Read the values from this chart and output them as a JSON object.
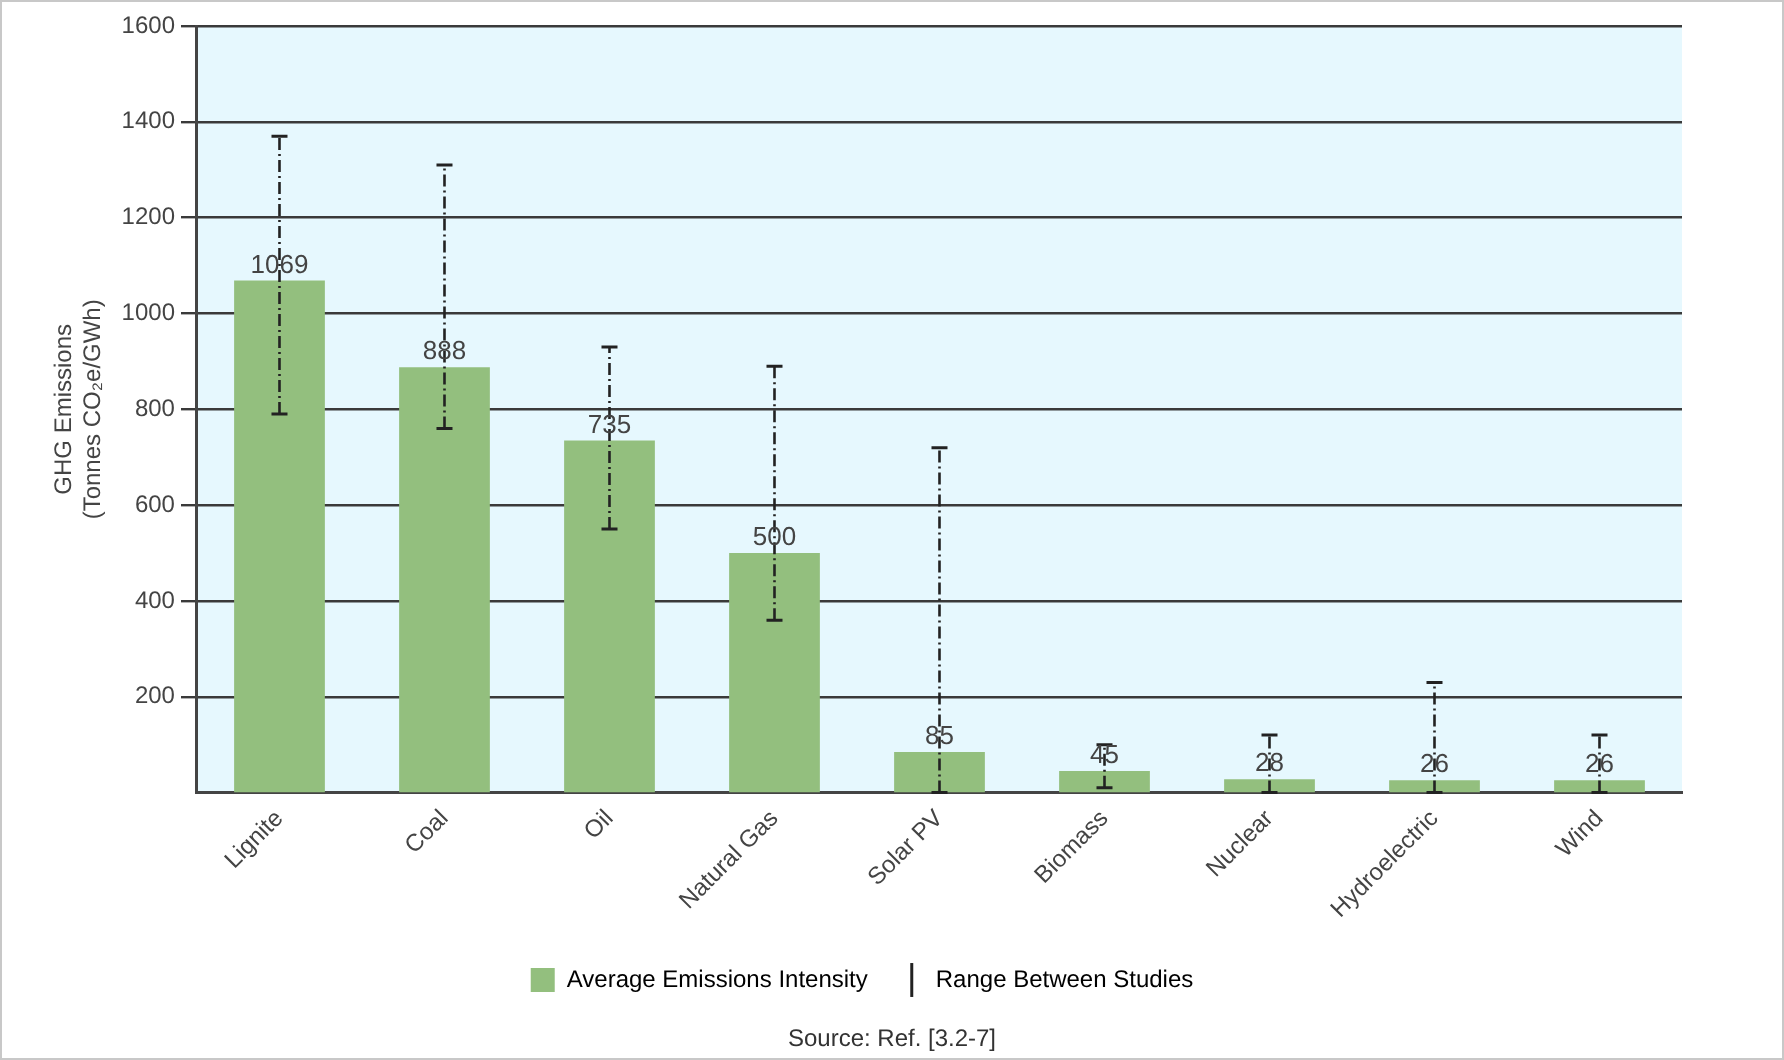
{
  "chart_data": {
    "type": "bar",
    "ylabel": "GHG Emissions\n(Tonnes CO₂e/GWh)",
    "categories": [
      "Lignite",
      "Coal",
      "Oil",
      "Natural Gas",
      "Solar PV",
      "Biomass",
      "Nuclear",
      "Hydroelectric",
      "Wind"
    ],
    "series": [
      {
        "name": "Average Emissions Intensity",
        "color": "#93bf7e",
        "values": [
          1069,
          888,
          735,
          500,
          85,
          45,
          28,
          26,
          26
        ],
        "errors": [
          [
            790,
            1370
          ],
          [
            760,
            1310
          ],
          [
            550,
            930
          ],
          [
            360,
            890
          ],
          [
            0,
            720
          ],
          [
            10,
            100
          ],
          [
            0,
            120
          ],
          [
            0,
            230
          ],
          [
            0,
            120
          ]
        ]
      }
    ],
    "ylim": [
      0,
      1600
    ],
    "yticks": [
      200,
      400,
      600,
      800,
      1000,
      1200,
      1400,
      1600
    ],
    "grid": "y",
    "legend": "bottom",
    "data_labels": true,
    "annotations": [
      "Range Between Studies",
      "Source: Ref. [3.2-7]"
    ]
  }
}
